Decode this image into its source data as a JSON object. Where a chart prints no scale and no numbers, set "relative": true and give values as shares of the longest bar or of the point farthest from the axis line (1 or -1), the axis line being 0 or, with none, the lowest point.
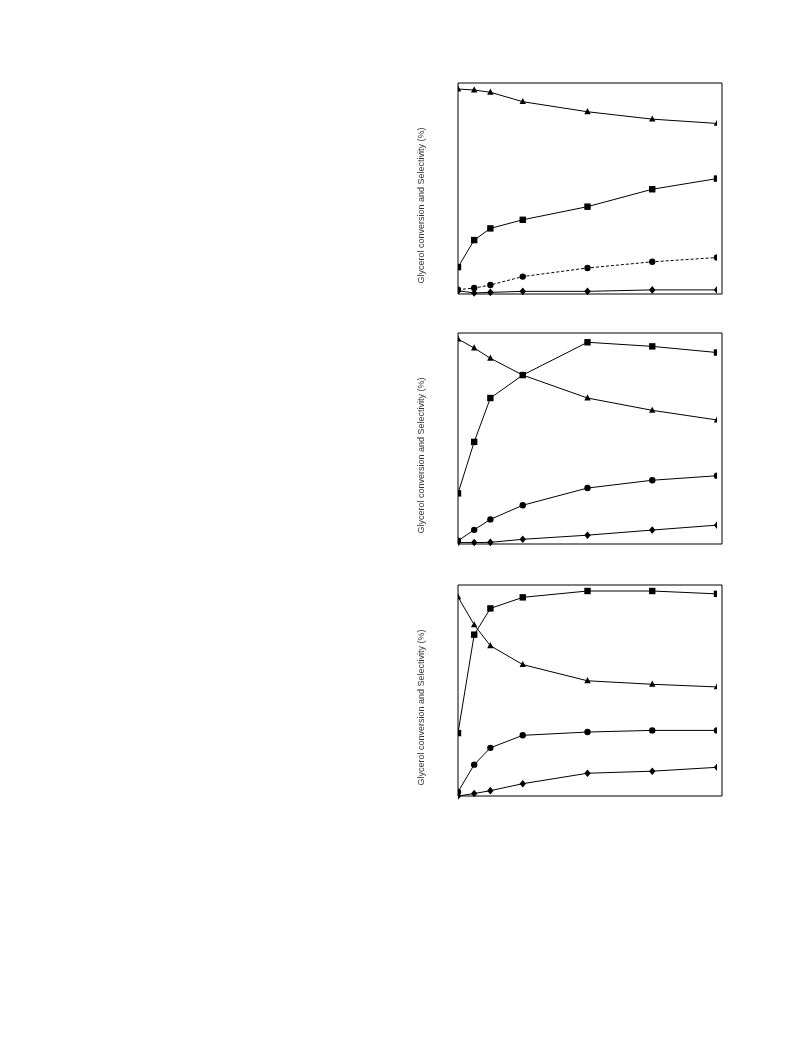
{
  "chart_data": [
    {
      "type": "line",
      "relative": true,
      "ylabel": "Glycerol conversion and Selectivity (%)",
      "tick_labels": false,
      "categories": [
        null,
        null,
        null,
        null,
        null,
        null,
        null,
        null,
        null,
        null,
        null,
        null,
        null,
        null,
        null,
        null,
        null
      ],
      "series": [
        {
          "color": "#000000",
          "marker": "triangle",
          "line_style": "solid",
          "values": [
            1,
            0.995,
            0.984,
            null,
            0.938,
            null,
            null,
            null,
            0.889,
            null,
            null,
            null,
            0.853,
            null,
            null,
            null,
            0.832
          ]
        },
        {
          "color": "#000000",
          "marker": "square",
          "line_style": "solid",
          "values": [
            0.131,
            0.263,
            0.32,
            null,
            0.362,
            null,
            null,
            null,
            0.426,
            null,
            null,
            null,
            0.511,
            null,
            null,
            null,
            0.563
          ]
        },
        {
          "color": "#000000",
          "marker": "circle",
          "line_style": "dashed",
          "values": [
            0.021,
            0.029,
            0.044,
            null,
            0.085,
            null,
            null,
            null,
            0.127,
            null,
            null,
            null,
            0.157,
            null,
            null,
            null,
            0.178
          ]
        },
        {
          "color": "#000000",
          "marker": "diamond",
          "line_style": "solid",
          "values": [
            0.016,
            0.005,
            0.008,
            null,
            0.013,
            null,
            null,
            null,
            0.013,
            null,
            null,
            null,
            0.02,
            null,
            null,
            null,
            0.02
          ]
        }
      ]
    },
    {
      "type": "line",
      "relative": true,
      "ylabel": "Glycerol conversion and Selectivity (%)",
      "tick_labels": false,
      "categories": [
        null,
        null,
        null,
        null,
        null,
        null,
        null,
        null,
        null,
        null,
        null,
        null,
        null,
        null,
        null,
        null,
        null
      ],
      "series": [
        {
          "color": "#000000",
          "marker": "triangle",
          "line_style": "solid",
          "values": [
            1,
            0.956,
            0.906,
            null,
            0.824,
            null,
            null,
            null,
            0.712,
            null,
            null,
            null,
            0.652,
            null,
            null,
            null,
            0.605
          ]
        },
        {
          "color": "#000000",
          "marker": "square",
          "line_style": "solid",
          "values": [
            0.247,
            0.498,
            0.712,
            null,
            0.824,
            null,
            null,
            null,
            0.984,
            null,
            null,
            null,
            0.964,
            null,
            null,
            null,
            0.934
          ]
        },
        {
          "color": "#000000",
          "marker": "circle",
          "line_style": "solid",
          "values": [
            0.016,
            0.069,
            0.12,
            null,
            0.189,
            null,
            null,
            null,
            0.273,
            null,
            null,
            null,
            0.311,
            null,
            null,
            null,
            0.333
          ]
        },
        {
          "color": "#000000",
          "marker": "diamond",
          "line_style": "solid",
          "values": [
            0.007,
            0.007,
            0.008,
            null,
            0.023,
            null,
            null,
            null,
            0.043,
            null,
            null,
            null,
            0.068,
            null,
            null,
            null,
            0.092
          ]
        }
      ]
    },
    {
      "type": "line",
      "relative": true,
      "ylabel": "Glycerol conversion and Selectivity (%)",
      "tick_labels": false,
      "categories": [
        null,
        null,
        null,
        null,
        null,
        null,
        null,
        null,
        null,
        null,
        null,
        null,
        null,
        null,
        null,
        null,
        null
      ],
      "series": [
        {
          "color": "#000000",
          "marker": "triangle",
          "line_style": "solid",
          "values": [
            0.971,
            0.835,
            0.733,
            null,
            0.641,
            null,
            null,
            null,
            0.562,
            null,
            null,
            null,
            0.545,
            null,
            null,
            null,
            0.532
          ]
        },
        {
          "color": "#000000",
          "marker": "square",
          "line_style": "solid",
          "values": [
            0.307,
            0.787,
            0.915,
            null,
            0.969,
            null,
            null,
            null,
            1,
            null,
            null,
            null,
            1,
            null,
            null,
            null,
            0.986
          ]
        },
        {
          "color": "#000000",
          "marker": "circle",
          "line_style": "solid",
          "values": [
            0.02,
            0.153,
            0.235,
            null,
            0.296,
            null,
            null,
            null,
            0.312,
            null,
            null,
            null,
            0.32,
            null,
            null,
            null,
            0.32
          ]
        },
        {
          "color": "#000000",
          "marker": "diamond",
          "line_style": "solid",
          "values": [
            0,
            0.012,
            0.026,
            null,
            0.06,
            null,
            null,
            null,
            0.111,
            null,
            null,
            null,
            0.121,
            null,
            null,
            null,
            0.14
          ]
        }
      ]
    }
  ]
}
